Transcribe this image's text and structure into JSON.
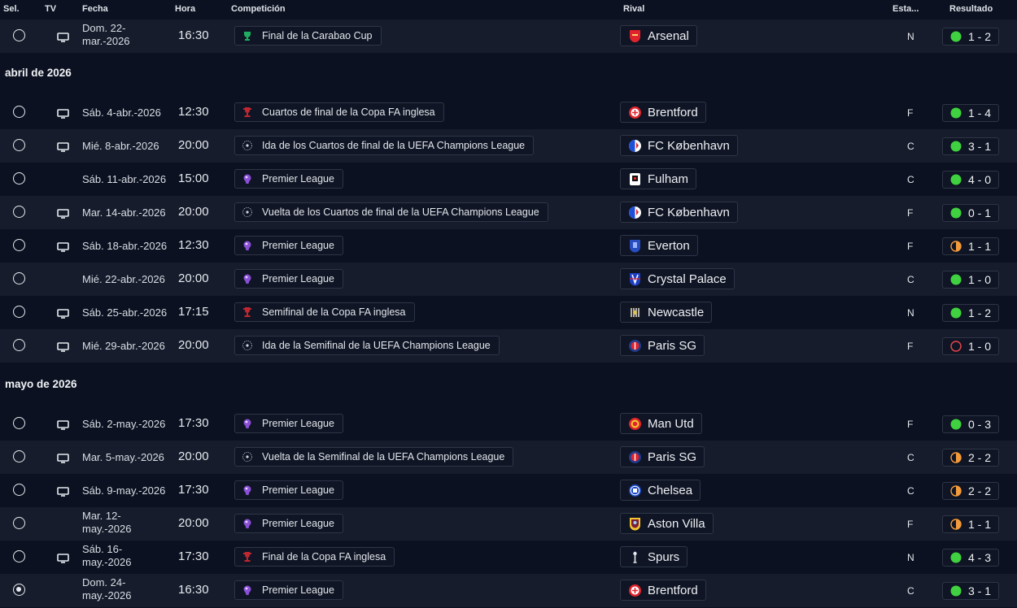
{
  "headers": {
    "sel": "Sel.",
    "tv": "TV",
    "fecha": "Fecha",
    "hora": "Hora",
    "competicion": "Competición",
    "rival": "Rival",
    "estadio": "Esta...",
    "resultado": "Resultado"
  },
  "colors": {
    "win": "#3fd13f",
    "draw": "#f39a3a",
    "loss": "#e5434b",
    "background": "#0b1120",
    "row_alt": "#161c2b"
  },
  "sections": {
    "april": "abril de 2026",
    "may": "mayo de 2026"
  },
  "matches": [
    {
      "date": "Dom. 22-mar.-2026",
      "time": "16:30",
      "competition": "Final de la Carabao Cup",
      "comp_icon": "carabao-cup-icon",
      "rival": "Arsenal",
      "rival_icon": "arsenal-crest-icon",
      "venue": "N",
      "result": "1 - 2",
      "outcome": "win",
      "tv": true,
      "selected": false
    },
    {
      "date": "Sáb. 4-abr.-2026",
      "time": "12:30",
      "competition": "Cuartos de final de la Copa FA inglesa",
      "comp_icon": "fa-cup-icon",
      "rival": "Brentford",
      "rival_icon": "brentford-crest-icon",
      "venue": "F",
      "result": "1 - 4",
      "outcome": "win",
      "tv": true,
      "selected": false
    },
    {
      "date": "Mié. 8-abr.-2026",
      "time": "20:00",
      "competition": "Ida de los Cuartos de final de la UEFA Champions League",
      "comp_icon": "champions-league-icon",
      "rival": "FC København",
      "rival_icon": "fc-kobenhavn-crest-icon",
      "venue": "C",
      "result": "3 - 1",
      "outcome": "win",
      "tv": true,
      "selected": false
    },
    {
      "date": "Sáb. 11-abr.-2026",
      "time": "15:00",
      "competition": "Premier League",
      "comp_icon": "premier-league-icon",
      "rival": "Fulham",
      "rival_icon": "fulham-crest-icon",
      "venue": "C",
      "result": "4 - 0",
      "outcome": "win",
      "tv": false,
      "selected": false
    },
    {
      "date": "Mar. 14-abr.-2026",
      "time": "20:00",
      "competition": "Vuelta de los Cuartos de final de la UEFA Champions League",
      "comp_icon": "champions-league-icon",
      "rival": "FC København",
      "rival_icon": "fc-kobenhavn-crest-icon",
      "venue": "F",
      "result": "0 - 1",
      "outcome": "win",
      "tv": true,
      "selected": false
    },
    {
      "date": "Sáb. 18-abr.-2026",
      "time": "12:30",
      "competition": "Premier League",
      "comp_icon": "premier-league-icon",
      "rival": "Everton",
      "rival_icon": "everton-crest-icon",
      "venue": "F",
      "result": "1 - 1",
      "outcome": "draw",
      "tv": true,
      "selected": false
    },
    {
      "date": "Mié. 22-abr.-2026",
      "time": "20:00",
      "competition": "Premier League",
      "comp_icon": "premier-league-icon",
      "rival": "Crystal Palace",
      "rival_icon": "crystal-palace-crest-icon",
      "venue": "C",
      "result": "1 - 0",
      "outcome": "win",
      "tv": false,
      "selected": false
    },
    {
      "date": "Sáb. 25-abr.-2026",
      "time": "17:15",
      "competition": "Semifinal de la Copa FA inglesa",
      "comp_icon": "fa-cup-icon",
      "rival": "Newcastle",
      "rival_icon": "newcastle-crest-icon",
      "venue": "N",
      "result": "1 - 2",
      "outcome": "win",
      "tv": true,
      "selected": false
    },
    {
      "date": "Mié. 29-abr.-2026",
      "time": "20:00",
      "competition": "Ida de la Semifinal de la UEFA Champions League",
      "comp_icon": "champions-league-icon",
      "rival": "Paris SG",
      "rival_icon": "paris-sg-crest-icon",
      "venue": "F",
      "result": "1 - 0",
      "outcome": "loss",
      "tv": true,
      "selected": false
    },
    {
      "date": "Sáb. 2-may.-2026",
      "time": "17:30",
      "competition": "Premier League",
      "comp_icon": "premier-league-icon",
      "rival": "Man Utd",
      "rival_icon": "man-utd-crest-icon",
      "venue": "F",
      "result": "0 - 3",
      "outcome": "win",
      "tv": true,
      "selected": false
    },
    {
      "date": "Mar. 5-may.-2026",
      "time": "20:00",
      "competition": "Vuelta de la Semifinal de la UEFA Champions League",
      "comp_icon": "champions-league-icon",
      "rival": "Paris SG",
      "rival_icon": "paris-sg-crest-icon",
      "venue": "C",
      "result": "2 - 2",
      "outcome": "draw",
      "tv": true,
      "selected": false
    },
    {
      "date": "Sáb. 9-may.-2026",
      "time": "17:30",
      "competition": "Premier League",
      "comp_icon": "premier-league-icon",
      "rival": "Chelsea",
      "rival_icon": "chelsea-crest-icon",
      "venue": "C",
      "result": "2 - 2",
      "outcome": "draw",
      "tv": true,
      "selected": false
    },
    {
      "date": "Mar. 12-may.-2026",
      "time": "20:00",
      "competition": "Premier League",
      "comp_icon": "premier-league-icon",
      "rival": "Aston Villa",
      "rival_icon": "aston-villa-crest-icon",
      "venue": "F",
      "result": "1 - 1",
      "outcome": "draw",
      "tv": false,
      "selected": false
    },
    {
      "date": "Sáb. 16-may.-2026",
      "time": "17:30",
      "competition": "Final de la Copa FA inglesa",
      "comp_icon": "fa-cup-icon",
      "rival": "Spurs",
      "rival_icon": "spurs-crest-icon",
      "venue": "N",
      "result": "4 - 3",
      "outcome": "win",
      "tv": true,
      "selected": false
    },
    {
      "date": "Dom. 24-may.-2026",
      "time": "16:30",
      "competition": "Premier League",
      "comp_icon": "premier-league-icon",
      "rival": "Brentford",
      "rival_icon": "brentford-crest-icon",
      "venue": "C",
      "result": "3 - 1",
      "outcome": "win",
      "tv": false,
      "selected": true
    }
  ]
}
